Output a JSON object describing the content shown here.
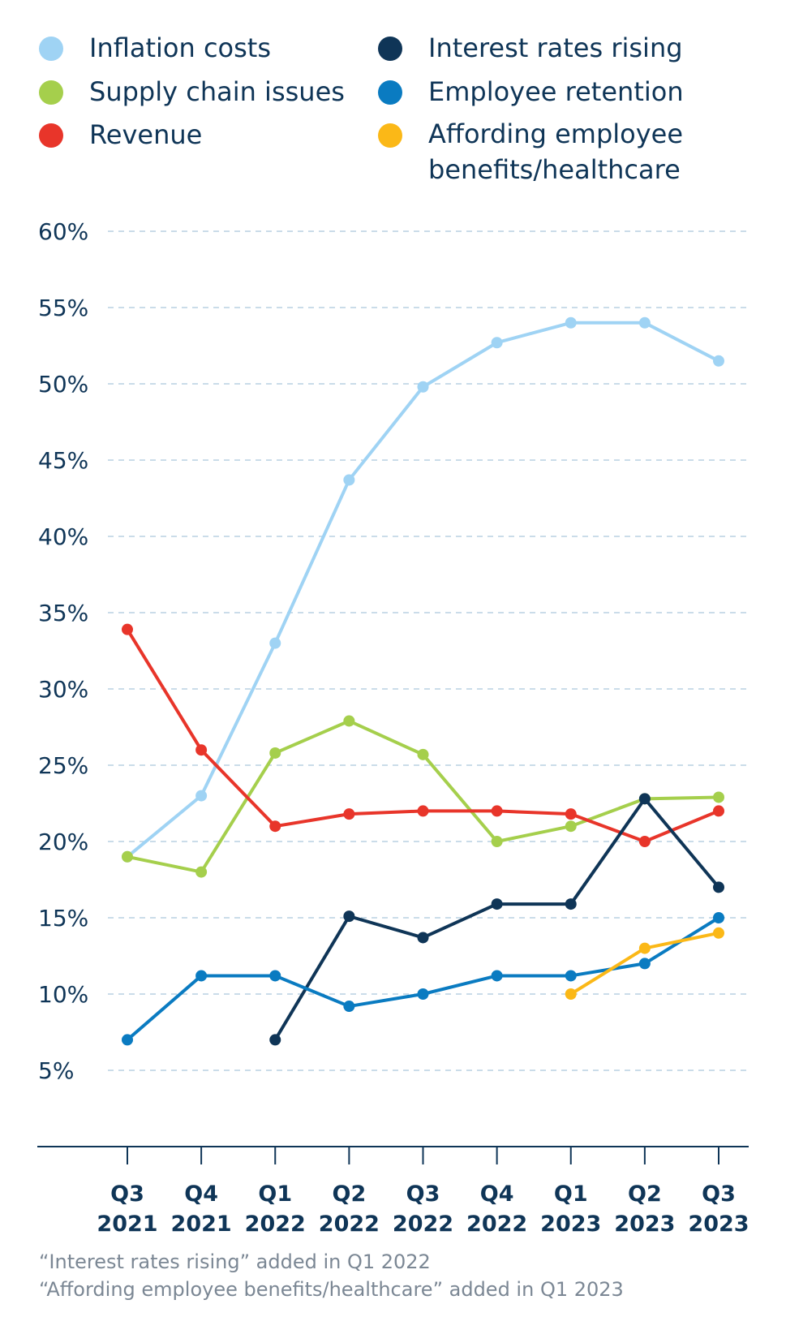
{
  "legend": [
    {
      "label": "Inflation costs",
      "color": "#9fd3f4"
    },
    {
      "label": "Supply chain issues",
      "color": "#a5cf4c"
    },
    {
      "label": "Revenue",
      "color": "#e8352a"
    },
    {
      "label": "Interest rates rising",
      "color": "#0f3557"
    },
    {
      "label": "Employee retention",
      "color": "#0a7bc1"
    },
    {
      "label": "Affording employee benefits/healthcare",
      "color": "#fbb817"
    }
  ],
  "footnotes": [
    "“Interest rates rising” added in Q1 2022",
    "“Affording employee benefits/healthcare” added in Q1 2023"
  ],
  "chart_data": {
    "type": "line",
    "categories": [
      {
        "q": "Q3",
        "y": "2021"
      },
      {
        "q": "Q4",
        "y": "2021"
      },
      {
        "q": "Q1",
        "y": "2022"
      },
      {
        "q": "Q2",
        "y": "2022"
      },
      {
        "q": "Q3",
        "y": "2022"
      },
      {
        "q": "Q4",
        "y": "2022"
      },
      {
        "q": "Q1",
        "y": "2023"
      },
      {
        "q": "Q2",
        "y": "2023"
      },
      {
        "q": "Q3",
        "y": "2023"
      }
    ],
    "yticks": [
      5,
      10,
      15,
      20,
      25,
      30,
      35,
      40,
      45,
      50,
      55,
      60
    ],
    "ytick_labels": [
      "5%",
      "10%",
      "15%",
      "20%",
      "25%",
      "30%",
      "35%",
      "40%",
      "45%",
      "50%",
      "55%",
      "60%"
    ],
    "ylim": [
      0,
      60
    ],
    "grid": true,
    "legend_position": "top",
    "series": [
      {
        "name": "Inflation costs",
        "color": "#9fd3f4",
        "values": [
          19,
          23,
          33,
          43.7,
          49.8,
          52.7,
          54,
          54,
          51.5
        ]
      },
      {
        "name": "Supply chain issues",
        "color": "#a5cf4c",
        "values": [
          19,
          18,
          25.8,
          27.9,
          25.7,
          20,
          21,
          22.8,
          22.9
        ]
      },
      {
        "name": "Revenue",
        "color": "#e8352a",
        "values": [
          33.9,
          26,
          21,
          21.8,
          22,
          22,
          21.8,
          20,
          22
        ]
      },
      {
        "name": "Interest rates rising",
        "color": "#0f3557",
        "values": [
          null,
          null,
          7,
          15.1,
          13.7,
          15.9,
          15.9,
          22.8,
          17
        ]
      },
      {
        "name": "Employee retention",
        "color": "#0a7bc1",
        "values": [
          7,
          11.2,
          11.2,
          9.2,
          10,
          11.2,
          11.2,
          12,
          15
        ]
      },
      {
        "name": "Affording employee benefits/healthcare",
        "color": "#fbb817",
        "values": [
          null,
          null,
          null,
          null,
          null,
          null,
          10,
          13,
          14
        ]
      }
    ]
  }
}
